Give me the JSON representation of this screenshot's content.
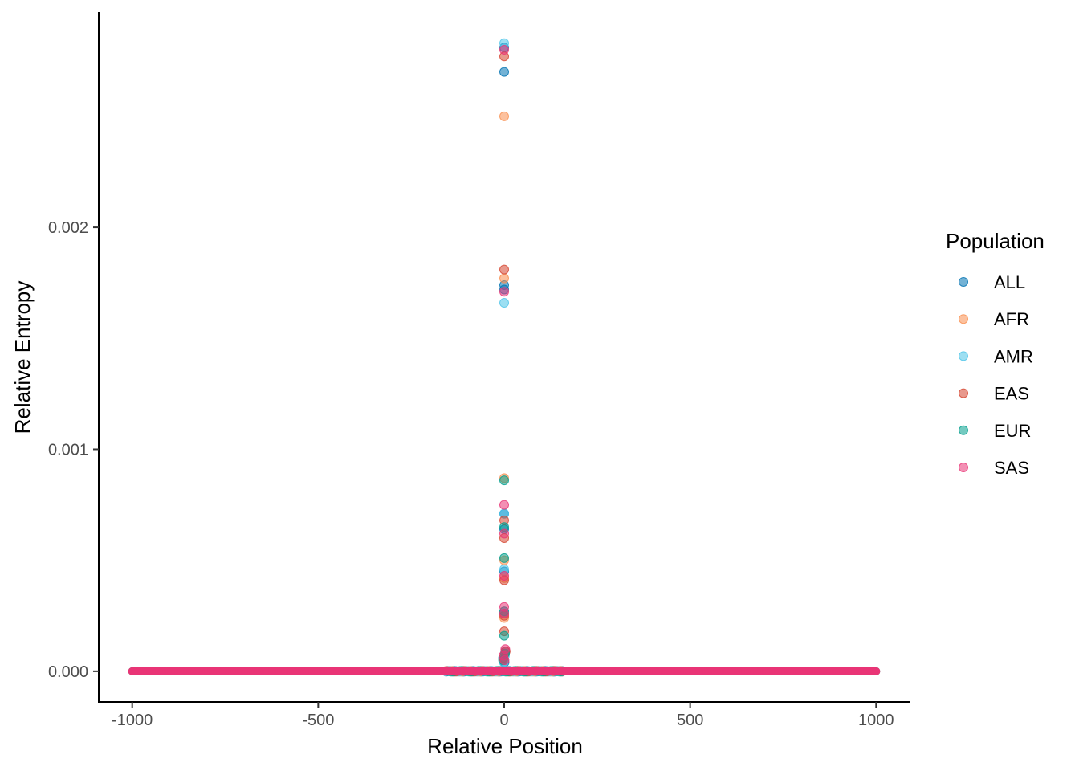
{
  "chart_data": {
    "type": "scatter",
    "title": "",
    "xlabel": "Relative Position",
    "ylabel": "Relative Entropy",
    "xlim": [
      -1090,
      1090
    ],
    "ylim": [
      -0.000138,
      0.00297
    ],
    "x_ticks": [
      -1000,
      -500,
      0,
      500,
      1000
    ],
    "x_tick_labels": [
      "-1000",
      "-500",
      "0",
      "500",
      "1000"
    ],
    "y_ticks": [
      0,
      0.001,
      0.002
    ],
    "y_tick_labels": [
      "0.000",
      "0.001",
      "0.002"
    ],
    "grid": false,
    "legend": {
      "title": "Population",
      "position": "right"
    },
    "baseline": {
      "x_range": [
        -1000,
        1000
      ],
      "y": 0
    },
    "series": [
      {
        "name": "ALL",
        "color": "#0072B2",
        "points": [
          [
            0,
            0.0027
          ],
          [
            0,
            0.00281
          ],
          [
            0,
            0.00174
          ],
          [
            0,
            0.00172
          ],
          [
            0,
            0.00071
          ],
          [
            0,
            0.00064
          ],
          [
            0,
            0.00045
          ],
          [
            0,
            0.00026
          ],
          [
            3,
            9e-05
          ],
          [
            -3,
            6e-05
          ],
          [
            1,
            4e-05
          ]
        ]
      },
      {
        "name": "AFR",
        "color": "#F98E4F",
        "points": [
          [
            0,
            0.0025
          ],
          [
            0,
            0.00177
          ],
          [
            0,
            0.00087
          ],
          [
            0,
            0.0005
          ],
          [
            0,
            0.00042
          ],
          [
            0,
            0.00024
          ],
          [
            2,
            8e-05
          ],
          [
            -2,
            5e-05
          ]
        ]
      },
      {
        "name": "AMR",
        "color": "#4DC4E8",
        "points": [
          [
            0,
            0.00283
          ],
          [
            0,
            0.00166
          ],
          [
            0,
            0.00071
          ],
          [
            0,
            0.00046
          ],
          [
            0,
            0.00027
          ],
          [
            2,
            7e-05
          ],
          [
            -1,
            4e-05
          ]
        ]
      },
      {
        "name": "EAS",
        "color": "#D6452F",
        "points": [
          [
            0,
            0.00277
          ],
          [
            0,
            0.00181
          ],
          [
            0,
            0.00068
          ],
          [
            0,
            0.0006
          ],
          [
            0,
            0.00041
          ],
          [
            0,
            0.00025
          ],
          [
            0,
            0.00018
          ],
          [
            4,
            9e-05
          ],
          [
            -2,
            6e-05
          ]
        ]
      },
      {
        "name": "EUR",
        "color": "#009E8C",
        "points": [
          [
            0,
            0.00086
          ],
          [
            0,
            0.00065
          ],
          [
            0,
            0.00051
          ],
          [
            0,
            0.00027
          ],
          [
            0,
            0.00016
          ],
          [
            2,
            8e-05
          ],
          [
            -3,
            5e-05
          ]
        ]
      },
      {
        "name": "SAS",
        "color": "#E93576",
        "points": [
          [
            0,
            0.0028
          ],
          [
            0,
            0.00171
          ],
          [
            0,
            0.00075
          ],
          [
            0,
            0.00062
          ],
          [
            0,
            0.00043
          ],
          [
            0,
            0.00029
          ],
          [
            0,
            0.00026
          ],
          [
            3,
            0.0001
          ],
          [
            -2,
            7e-05
          ],
          [
            1,
            5e-05
          ]
        ]
      }
    ]
  }
}
